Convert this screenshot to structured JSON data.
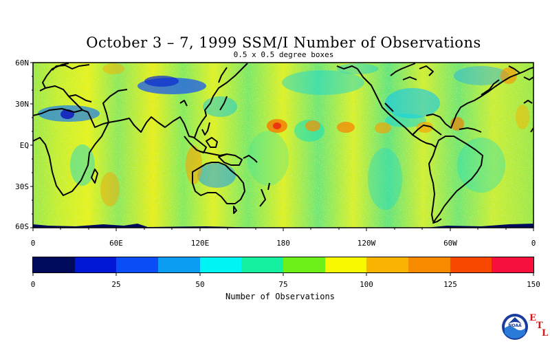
{
  "title": "October 3 – 7, 1999 SSM/I Number of Observations",
  "subtitle": "0.5 x 0.5 degree boxes",
  "lat_labels": [
    "60N",
    "30N",
    "EQ",
    "30S",
    "60S"
  ],
  "lon_labels": [
    "0",
    "60E",
    "120E",
    "180",
    "120W",
    "60W",
    "0"
  ],
  "colorbar": {
    "title": "Number of Observations",
    "tick_labels": [
      "0",
      "25",
      "50",
      "75",
      "100",
      "125",
      "150"
    ],
    "colors": [
      "#000a5a",
      "#0018d6",
      "#0a4cf6",
      "#0a9cf0",
      "#00f4f4",
      "#14f0a0",
      "#6cf018",
      "#f8f800",
      "#f8b400",
      "#f88a00",
      "#f84800",
      "#f8103c"
    ]
  },
  "logo": {
    "text": "NOAA",
    "letters": [
      "E",
      "T",
      "L"
    ]
  },
  "chart_data": {
    "type": "heatmap",
    "title": "October 3 – 7, 1999 SSM/I Number of Observations",
    "subtitle": "0.5 x 0.5 degree boxes",
    "colorbar_label": "Number of Observations",
    "value_range": [
      0,
      150
    ],
    "lon_range": [
      0,
      360
    ],
    "lat_range": [
      -60,
      60
    ]
  }
}
